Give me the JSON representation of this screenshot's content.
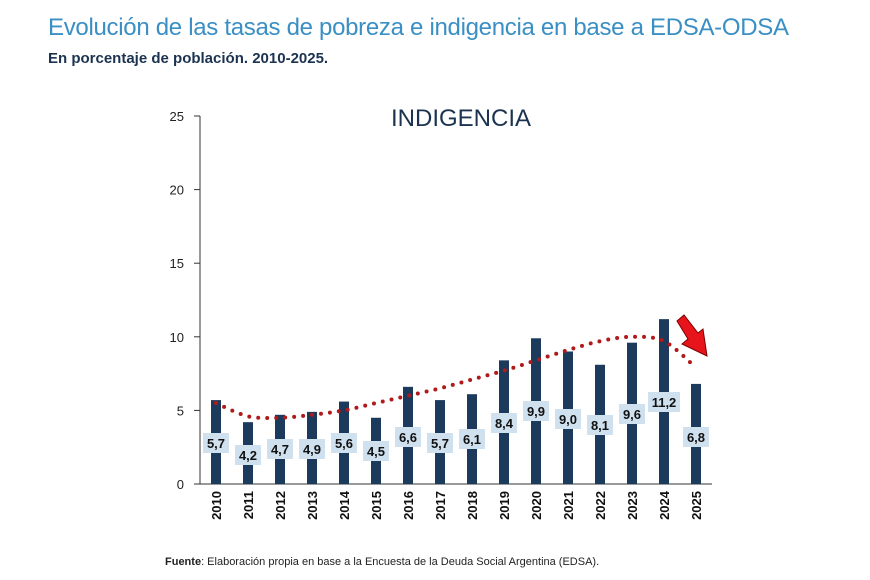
{
  "header": {
    "title": "Evolución de las tasas de pobreza e indigencia en base a EDSA-ODSA",
    "subtitle": "En porcentaje de población. 2010-2025."
  },
  "footer": {
    "source_label": "Fuente",
    "source_text": ": Elaboración propia en base a la Encuesta de la Deuda Social Argentina (EDSA)."
  },
  "colors": {
    "bar": "#1b3a5c",
    "label_bg": "#cfe0ef",
    "trend": "#b01a1a",
    "arrow": "#e8141b",
    "axis": "#333333"
  },
  "chart_data": {
    "type": "bar",
    "title": "INDIGENCIA",
    "categories": [
      "2010",
      "2011",
      "2012",
      "2013",
      "2014",
      "2015",
      "2016",
      "2017",
      "2018",
      "2019",
      "2020",
      "2021",
      "2022",
      "2023",
      "2024",
      "2025"
    ],
    "values": [
      5.7,
      4.2,
      4.7,
      4.9,
      5.6,
      4.5,
      6.6,
      5.7,
      6.1,
      8.4,
      9.9,
      9.0,
      8.1,
      9.6,
      11.2,
      6.8
    ],
    "value_labels": [
      "5,7",
      "4,2",
      "4,7",
      "4,9",
      "5,6",
      "4,5",
      "6,6",
      "5,7",
      "6,1",
      "8,4",
      "9,9",
      "9,0",
      "8,1",
      "9,6",
      "11,2",
      "6,8"
    ],
    "ylim": [
      0,
      25
    ],
    "yticks": [
      "0",
      "5",
      "10",
      "15",
      "20",
      "25"
    ],
    "ytick_values": [
      0,
      5,
      10,
      15,
      20,
      25
    ],
    "trendline": {
      "style": "dotted",
      "x": [
        "2010",
        "2011",
        "2012",
        "2013",
        "2014",
        "2015",
        "2016",
        "2017",
        "2018",
        "2019",
        "2020",
        "2021",
        "2022",
        "2023",
        "2024",
        "2025"
      ],
      "y": [
        5.5,
        4.6,
        4.5,
        4.7,
        5.0,
        5.5,
        6.0,
        6.5,
        7.1,
        7.7,
        8.4,
        9.1,
        9.7,
        10.0,
        9.7,
        7.9
      ]
    },
    "annotation": "red arrow pointing down at 2025",
    "xlabel": "",
    "ylabel": "",
    "grid": false,
    "legend": "none"
  }
}
